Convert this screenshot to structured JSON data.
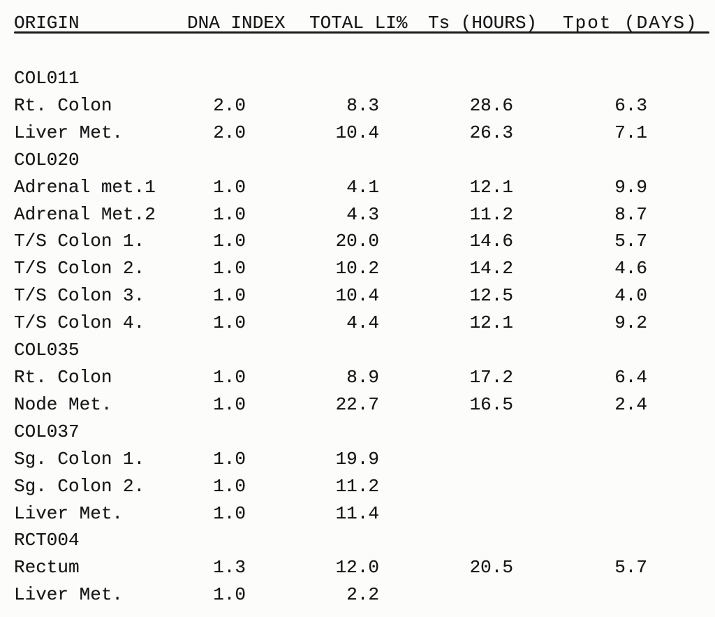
{
  "page": {
    "background_color": "#fcfcfb",
    "text_color": "#161616",
    "description": "Scanned typewriter-style data table of tumor sample kinetics"
  },
  "table": {
    "columns": [
      "ORIGIN",
      "DNA INDEX",
      "TOTAL LI%",
      "Ts (HOURS)",
      "Tpot (DAYS)"
    ],
    "rows": [
      {
        "type": "group",
        "cells": [
          "COL011",
          "",
          "",
          "",
          ""
        ]
      },
      {
        "type": "sample",
        "cells": [
          "Rt. Colon",
          "2.0",
          "8.3",
          "28.6",
          "6.3"
        ]
      },
      {
        "type": "sample",
        "cells": [
          "Liver Met.",
          "2.0",
          "10.4",
          "26.3",
          "7.1"
        ]
      },
      {
        "type": "group",
        "cells": [
          "COL020",
          "",
          "",
          "",
          ""
        ]
      },
      {
        "type": "sample",
        "cells": [
          "Adrenal met.1",
          "1.0",
          "4.1",
          "12.1",
          "9.9"
        ]
      },
      {
        "type": "sample",
        "cells": [
          "Adrenal Met.2",
          "1.0",
          "4.3",
          "11.2",
          "8.7"
        ]
      },
      {
        "type": "sample",
        "cells": [
          "T/S Colon 1.",
          "1.0",
          "20.0",
          "14.6",
          "5.7"
        ]
      },
      {
        "type": "sample",
        "cells": [
          "T/S Colon 2.",
          "1.0",
          "10.2",
          "14.2",
          "4.6"
        ]
      },
      {
        "type": "sample",
        "cells": [
          "T/S Colon 3.",
          "1.0",
          "10.4",
          "12.5",
          "4.0"
        ]
      },
      {
        "type": "sample",
        "cells": [
          "T/S Colon 4.",
          "1.0",
          "4.4",
          "12.1",
          "9.2"
        ]
      },
      {
        "type": "group",
        "cells": [
          "COL035",
          "",
          "",
          "",
          ""
        ]
      },
      {
        "type": "sample",
        "cells": [
          "Rt. Colon",
          "1.0",
          "8.9",
          "17.2",
          "6.4"
        ]
      },
      {
        "type": "sample",
        "cells": [
          "Node Met.",
          "1.0",
          "22.7",
          "16.5",
          "2.4"
        ]
      },
      {
        "type": "group",
        "cells": [
          "COL037",
          "",
          "",
          "",
          ""
        ]
      },
      {
        "type": "sample",
        "cells": [
          "Sg. Colon 1.",
          "1.0",
          "19.9",
          "",
          ""
        ]
      },
      {
        "type": "sample",
        "cells": [
          "Sg. Colon 2.",
          "1.0",
          "11.2",
          "",
          ""
        ]
      },
      {
        "type": "sample",
        "cells": [
          "Liver Met.",
          "1.0",
          "11.4",
          "",
          ""
        ]
      },
      {
        "type": "group",
        "cells": [
          "RCT004",
          "",
          "",
          "",
          ""
        ]
      },
      {
        "type": "sample",
        "cells": [
          "Rectum",
          "1.3",
          "12.0",
          "20.5",
          "5.7"
        ]
      },
      {
        "type": "sample",
        "cells": [
          "Liver Met.",
          "1.0",
          "2.2",
          "",
          ""
        ]
      }
    ]
  }
}
